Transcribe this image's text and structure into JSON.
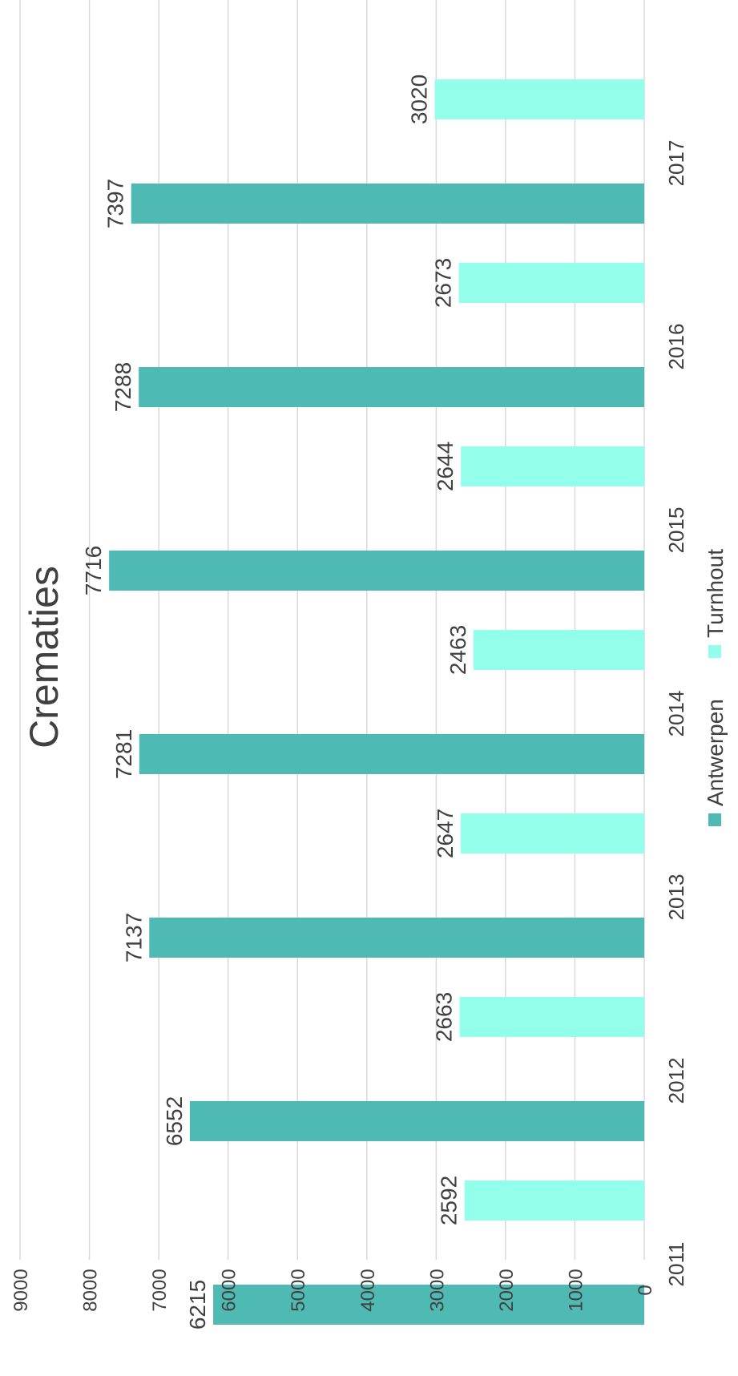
{
  "chart_data": {
    "type": "bar",
    "orientation": "rotated-vertical",
    "title": "Crematies",
    "categories": [
      "2011",
      "2012",
      "2013",
      "2014",
      "2015",
      "2016",
      "2017"
    ],
    "series": [
      {
        "name": "Antwerpen",
        "color": "#4fb9b3",
        "values": [
          6215,
          6552,
          7137,
          7281,
          7716,
          7288,
          7397
        ]
      },
      {
        "name": "Turnhout",
        "color": "#93ffea",
        "values": [
          2592,
          2663,
          2647,
          2463,
          2644,
          2673,
          3020
        ]
      }
    ],
    "ylim": [
      0,
      9000
    ],
    "yticks": [
      "0",
      "1000",
      "2000",
      "3000",
      "4000",
      "5000",
      "6000",
      "7000",
      "8000",
      "9000"
    ],
    "grid": true,
    "legend": "bottom",
    "data_labels": true
  }
}
